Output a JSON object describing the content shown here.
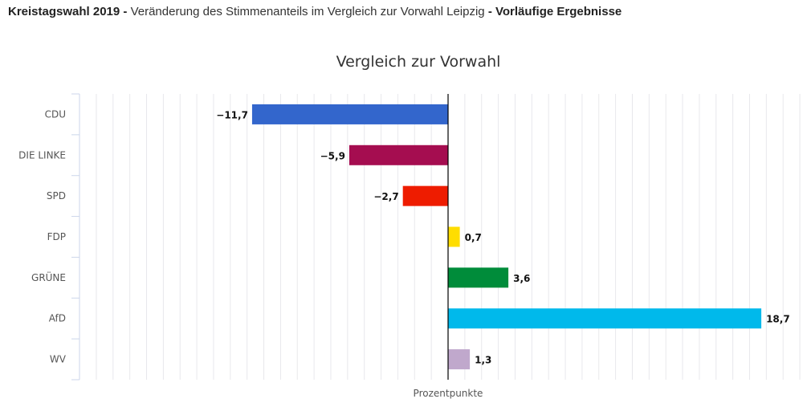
{
  "header": {
    "part1": "Kreistagswahl 2019 -",
    "part2": " Veränderung des Stimmenanteils im Vergleich zur Vorwahl Leipzig ",
    "part3": "- Vorläufige Ergebnisse"
  },
  "chart_data": {
    "type": "bar",
    "orientation": "horizontal",
    "title": "Vergleich zur Vorwahl",
    "xlabel": "Prozentpunkte",
    "ylabel": "",
    "categories": [
      "CDU",
      "DIE LINKE",
      "SPD",
      "FDP",
      "GRÜNE",
      "AfD",
      "WV"
    ],
    "values": [
      -11.7,
      -5.9,
      -2.7,
      0.7,
      3.6,
      18.7,
      1.3
    ],
    "value_labels": [
      "−11,7",
      "−5,9",
      "−2,7",
      "0,7",
      "3,6",
      "18,7",
      "1,3"
    ],
    "colors": [
      "#3366cc",
      "#a50d50",
      "#ee1c00",
      "#ffdd00",
      "#008c3a",
      "#00b9eb",
      "#c0a8cc"
    ],
    "xlim": [
      -22,
      21
    ],
    "grid": true,
    "grid_step": 1,
    "legend": "none"
  }
}
